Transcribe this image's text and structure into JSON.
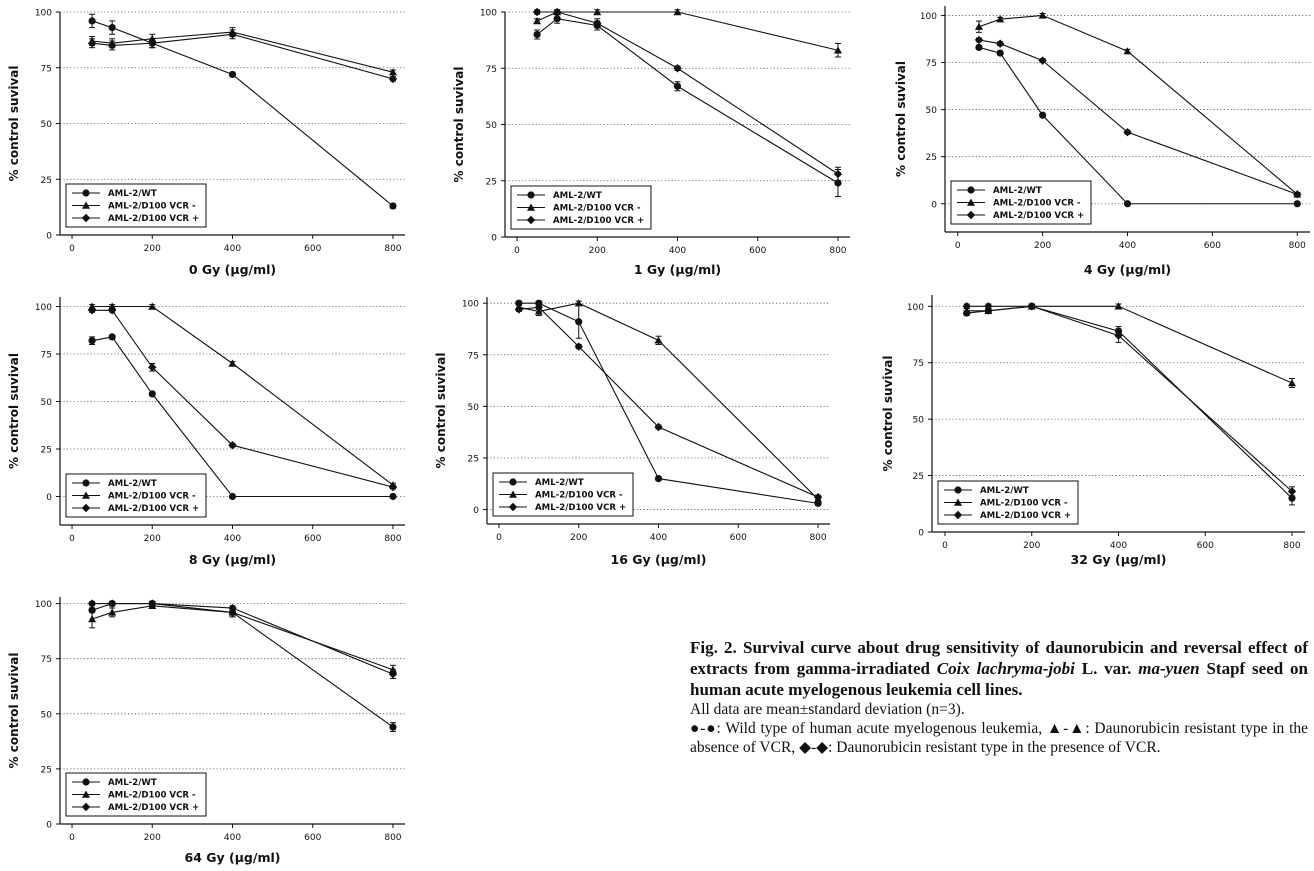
{
  "chart_data": [
    {
      "type": "line",
      "xlabel": "0 Gy (μg/ml)",
      "ylabel": "% control suvival",
      "xlim": [
        -30,
        830
      ],
      "ylim": [
        0,
        100
      ],
      "xticks": [
        0,
        200,
        400,
        600,
        800
      ],
      "yticks": [
        0,
        25,
        50,
        75,
        100
      ],
      "grid": "horizontal dotted",
      "legend": "bottom-left",
      "series": [
        {
          "name": "AML-2/WT",
          "marker": "circle",
          "x": [
            50,
            100,
            200,
            400,
            800
          ],
          "y": [
            96,
            93,
            86,
            72,
            13
          ],
          "err": [
            3,
            3,
            2,
            1,
            1
          ]
        },
        {
          "name": "AML-2/D100 VCR -",
          "marker": "triangle",
          "x": [
            50,
            100,
            200,
            400,
            800
          ],
          "y": [
            87,
            86,
            88,
            91,
            73
          ],
          "err": [
            2,
            2,
            2,
            2,
            1
          ]
        },
        {
          "name": "AML-2/D100 VCR +",
          "marker": "diamond",
          "x": [
            50,
            100,
            200,
            400,
            800
          ],
          "y": [
            86,
            85,
            86,
            90,
            70
          ],
          "err": [
            2,
            2,
            2,
            2,
            1
          ]
        }
      ]
    },
    {
      "type": "line",
      "xlabel": "1 Gy (μg/ml)",
      "ylabel": "% control suvival",
      "xlim": [
        -30,
        830
      ],
      "ylim": [
        0,
        100
      ],
      "xticks": [
        0,
        200,
        400,
        600,
        800
      ],
      "yticks": [
        0,
        25,
        50,
        75,
        100
      ],
      "grid": "horizontal dotted",
      "legend": "bottom-left",
      "series": [
        {
          "name": "AML-2/WT",
          "marker": "circle",
          "x": [
            50,
            100,
            200,
            400,
            800
          ],
          "y": [
            90,
            97,
            94,
            67,
            24
          ],
          "err": [
            2,
            2,
            2,
            2,
            6
          ]
        },
        {
          "name": "AML-2/D100 VCR -",
          "marker": "triangle",
          "x": [
            50,
            100,
            200,
            400,
            800
          ],
          "y": [
            96,
            100,
            100,
            100,
            83
          ],
          "err": [
            1,
            1,
            1,
            1,
            3
          ]
        },
        {
          "name": "AML-2/D100 VCR +",
          "marker": "diamond",
          "x": [
            50,
            100,
            200,
            400,
            800
          ],
          "y": [
            100,
            100,
            95,
            75,
            28
          ],
          "err": [
            1,
            1,
            2,
            1,
            3
          ]
        }
      ]
    },
    {
      "type": "line",
      "xlabel": "4 Gy (μg/ml)",
      "ylabel": "% control suvival",
      "xlim": [
        -30,
        830
      ],
      "ylim": [
        -15,
        105
      ],
      "xticks": [
        0,
        200,
        400,
        600,
        800
      ],
      "yticks": [
        0,
        25,
        50,
        75,
        100
      ],
      "grid": "horizontal dotted",
      "legend": "bottom-left",
      "series": [
        {
          "name": "AML-2/WT",
          "marker": "circle",
          "x": [
            50,
            100,
            200,
            400,
            800
          ],
          "y": [
            83,
            80,
            47,
            0,
            0
          ],
          "err": [
            1,
            1,
            1,
            0,
            0
          ]
        },
        {
          "name": "AML-2/D100 VCR -",
          "marker": "triangle",
          "x": [
            50,
            100,
            200,
            400,
            800
          ],
          "y": [
            94,
            98,
            100,
            81,
            5
          ],
          "err": [
            3,
            1,
            1,
            1,
            1
          ]
        },
        {
          "name": "AML-2/D100 VCR +",
          "marker": "diamond",
          "x": [
            50,
            100,
            200,
            400,
            800
          ],
          "y": [
            87,
            85,
            76,
            38,
            5
          ],
          "err": [
            1,
            1,
            1,
            1,
            1
          ]
        }
      ]
    },
    {
      "type": "line",
      "xlabel": "8 Gy (μg/ml)",
      "ylabel": "% control suvival",
      "xlim": [
        -30,
        830
      ],
      "ylim": [
        -15,
        105
      ],
      "xticks": [
        0,
        200,
        400,
        600,
        800
      ],
      "yticks": [
        0,
        25,
        50,
        75,
        100
      ],
      "grid": "horizontal dotted",
      "legend": "bottom-left",
      "series": [
        {
          "name": "AML-2/WT",
          "marker": "circle",
          "x": [
            50,
            100,
            200,
            400,
            800
          ],
          "y": [
            82,
            84,
            54,
            0,
            0
          ],
          "err": [
            2,
            1,
            1,
            0,
            0
          ]
        },
        {
          "name": "AML-2/D100 VCR -",
          "marker": "triangle",
          "x": [
            50,
            100,
            200,
            400,
            800
          ],
          "y": [
            100,
            100,
            100,
            70,
            6
          ],
          "err": [
            1,
            1,
            1,
            1,
            1
          ]
        },
        {
          "name": "AML-2/D100 VCR +",
          "marker": "diamond",
          "x": [
            50,
            100,
            200,
            400,
            800
          ],
          "y": [
            98,
            98,
            68,
            27,
            5
          ],
          "err": [
            1,
            1,
            2,
            1,
            1
          ]
        }
      ]
    },
    {
      "type": "line",
      "xlabel": "16 Gy (μg/ml)",
      "ylabel": "% control suvival",
      "xlim": [
        -30,
        830
      ],
      "ylim": [
        -7,
        103
      ],
      "xticks": [
        0,
        200,
        400,
        600,
        800
      ],
      "yticks": [
        0,
        25,
        50,
        75,
        100
      ],
      "grid": "horizontal dotted",
      "legend": "bottom-left",
      "series": [
        {
          "name": "AML-2/WT",
          "marker": "circle",
          "x": [
            50,
            100,
            200,
            400,
            800
          ],
          "y": [
            100,
            100,
            91,
            15,
            3
          ],
          "err": [
            1,
            1,
            8,
            1,
            1
          ]
        },
        {
          "name": "AML-2/D100 VCR -",
          "marker": "triangle",
          "x": [
            50,
            100,
            200,
            400,
            800
          ],
          "y": [
            98,
            96,
            100,
            82,
            5
          ],
          "err": [
            1,
            2,
            1,
            2,
            1
          ]
        },
        {
          "name": "AML-2/D100 VCR +",
          "marker": "diamond",
          "x": [
            50,
            100,
            200,
            400,
            800
          ],
          "y": [
            97,
            98,
            79,
            40,
            6
          ],
          "err": [
            1,
            1,
            1,
            1,
            1
          ]
        }
      ]
    },
    {
      "type": "line",
      "xlabel": "32 Gy (μg/ml)",
      "ylabel": "% control suvival",
      "xlim": [
        -30,
        830
      ],
      "ylim": [
        0,
        105
      ],
      "xticks": [
        0,
        200,
        400,
        600,
        800
      ],
      "yticks": [
        0,
        25,
        50,
        75,
        100
      ],
      "grid": "horizontal dotted",
      "legend": "bottom-left",
      "series": [
        {
          "name": "AML-2/WT",
          "marker": "circle",
          "x": [
            50,
            100,
            200,
            400,
            800
          ],
          "y": [
            97,
            98,
            100,
            89,
            15
          ],
          "err": [
            1,
            1,
            1,
            2,
            3
          ]
        },
        {
          "name": "AML-2/D100 VCR -",
          "marker": "triangle",
          "x": [
            50,
            100,
            200,
            400,
            800
          ],
          "y": [
            98,
            98,
            100,
            100,
            66
          ],
          "err": [
            1,
            1,
            1,
            1,
            2
          ]
        },
        {
          "name": "AML-2/D100 VCR +",
          "marker": "diamond",
          "x": [
            50,
            100,
            200,
            400,
            800
          ],
          "y": [
            100,
            100,
            100,
            87,
            18
          ],
          "err": [
            1,
            1,
            1,
            3,
            2
          ]
        }
      ]
    },
    {
      "type": "line",
      "xlabel": "64 Gy (μg/ml)",
      "ylabel": "% control suvival",
      "xlim": [
        -30,
        830
      ],
      "ylim": [
        0,
        103
      ],
      "xticks": [
        0,
        200,
        400,
        600,
        800
      ],
      "yticks": [
        0,
        25,
        50,
        75,
        100
      ],
      "grid": "horizontal dotted",
      "legend": "bottom-left",
      "series": [
        {
          "name": "AML-2/WT",
          "marker": "circle",
          "x": [
            50,
            100,
            200,
            400,
            800
          ],
          "y": [
            97,
            100,
            100,
            96,
            44
          ],
          "err": [
            1,
            1,
            1,
            2,
            2
          ]
        },
        {
          "name": "AML-2/D100 VCR -",
          "marker": "triangle",
          "x": [
            50,
            100,
            200,
            400,
            800
          ],
          "y": [
            93,
            96,
            99,
            96,
            70
          ],
          "err": [
            4,
            2,
            1,
            2,
            2
          ]
        },
        {
          "name": "AML-2/D100 VCR +",
          "marker": "diamond",
          "x": [
            50,
            100,
            200,
            400,
            800
          ],
          "y": [
            100,
            100,
            100,
            98,
            68
          ],
          "err": [
            1,
            1,
            1,
            1,
            2
          ]
        }
      ]
    }
  ],
  "caption": {
    "bold_part1": "Fig. 2. Survival curve about drug sensitivity of daunorubicin and reversal effect of extracts from gamma-irradiated ",
    "bold_italic1": "Coix lachryma-jobi",
    "bold_part2": " L. var. ",
    "bold_italic2": "ma-yuen",
    "bold_part3": " Stapf seed on human acute myelogenous leukemia cell lines.",
    "line2": "All data are mean±standard deviation (n=3).",
    "legend_wt_symbol": "●-●",
    "legend_wt_text": ": Wild type of human acute myelogenous leukemia, ",
    "legend_vm_symbol": "▲-▲",
    "legend_vm_text": ": Daunorubicin resistant type in the absence of VCR, ",
    "legend_vp_symbol": "◆-◆",
    "legend_vp_text": ": Daunorubicin resistant type in the presence of VCR."
  }
}
